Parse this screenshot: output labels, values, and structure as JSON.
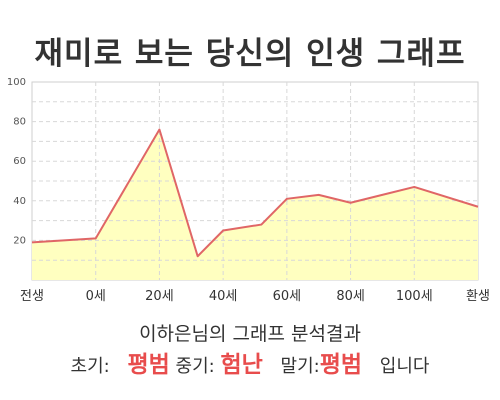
{
  "title": "재미로 보는 당신의 인생 그래프",
  "chart_data": {
    "type": "area",
    "categories": [
      "전생",
      "0세",
      "20세",
      "40세",
      "60세",
      "80세",
      "100세",
      "환생"
    ],
    "x": [
      -20,
      0,
      20,
      32,
      40,
      52,
      60,
      70,
      80,
      100,
      120
    ],
    "values": [
      19,
      21,
      76,
      12,
      25,
      28,
      41,
      43,
      39,
      47,
      37
    ],
    "xlim": [
      -20,
      120
    ],
    "ylim": [
      0,
      100
    ],
    "yticks": [
      20,
      40,
      60,
      80,
      100
    ],
    "grid": true,
    "colors": {
      "line": "#e06666",
      "fill": "#ffffc0",
      "grid": "#d8d8d8"
    }
  },
  "subtitle": "이하은님의 그래프 분석결과",
  "summary": {
    "early_label": "초기:",
    "early_value": "평범",
    "middle_label": "중기:",
    "middle_value": "험난",
    "late_label": "말기:",
    "late_value": "평범",
    "ending": "입니다"
  }
}
